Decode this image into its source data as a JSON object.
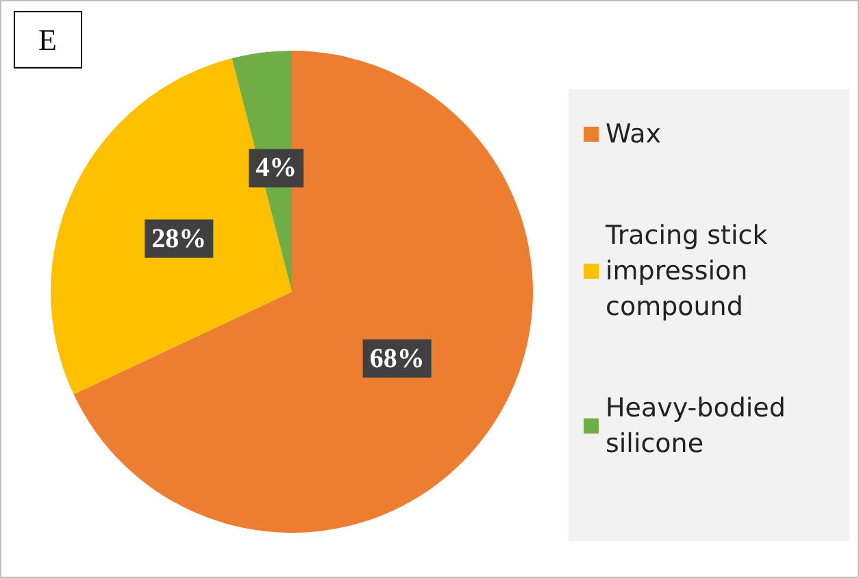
{
  "chart_data": {
    "type": "pie",
    "title": "E",
    "categories": [
      "Wax",
      "Tracing stick impression compound",
      "Heavy-bodied silicone"
    ],
    "values": [
      68,
      28,
      4
    ],
    "colors": [
      "#ed7d31",
      "#ffc000",
      "#70ad47"
    ],
    "value_labels": [
      "68%",
      "28%",
      "4%"
    ],
    "legend": "right"
  }
}
